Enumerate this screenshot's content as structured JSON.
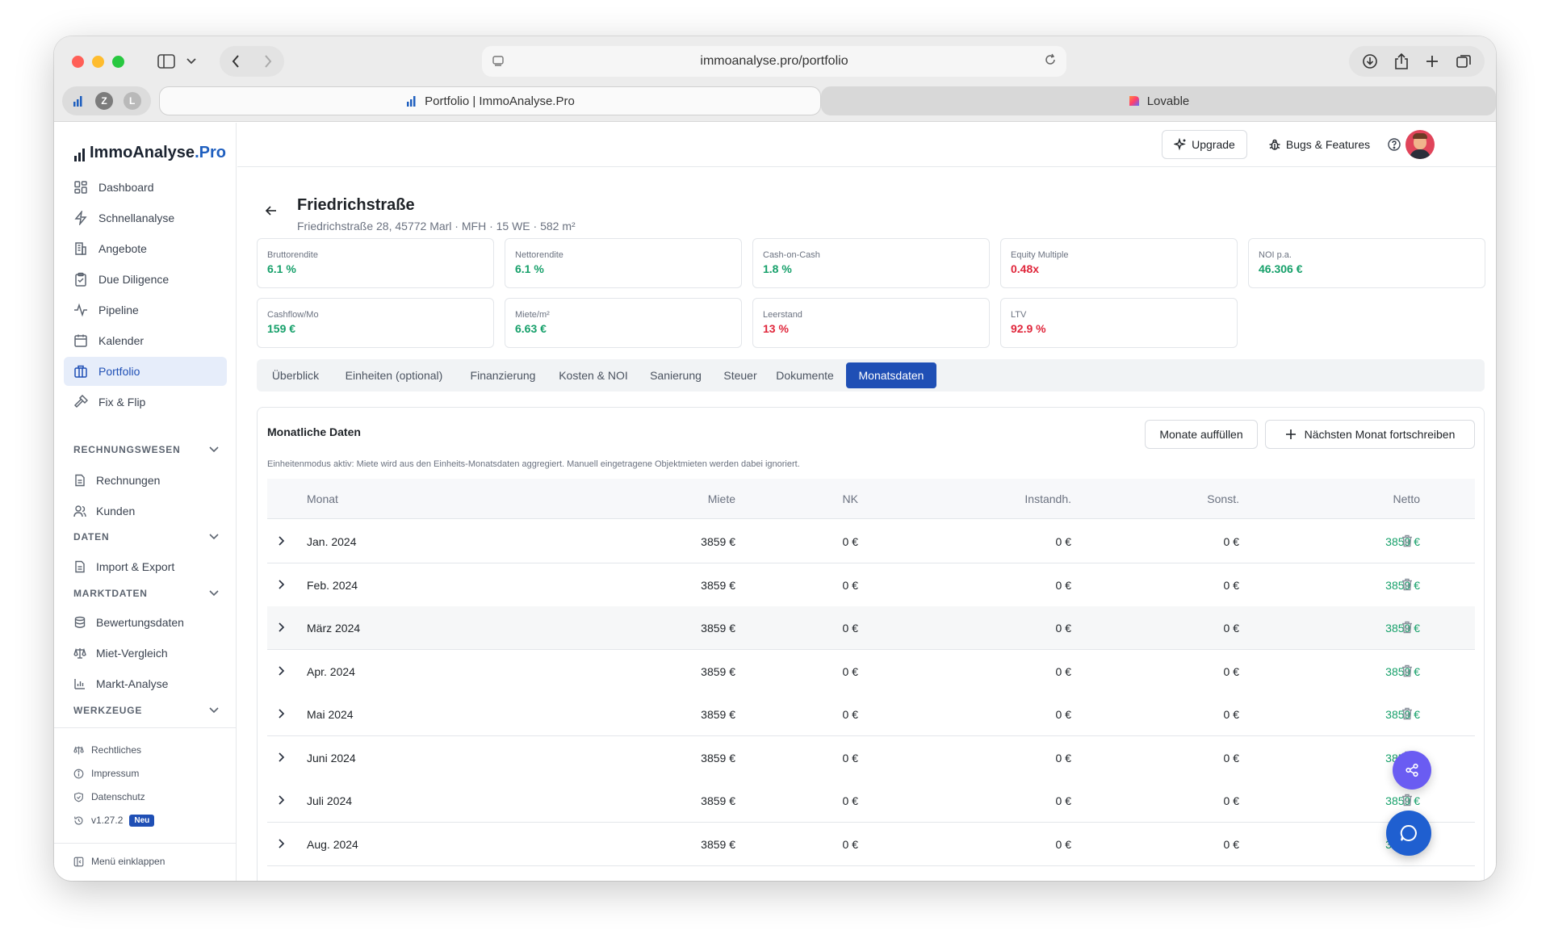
{
  "browser": {
    "url": "immoanalyse.pro/portfolio",
    "tabs": [
      {
        "label": "Portfolio | ImmoAnalyse.Pro",
        "active": true
      },
      {
        "label": "Lovable",
        "active": false
      }
    ],
    "favorites": [
      "Z",
      "L"
    ]
  },
  "logo": {
    "main": "ImmoAnalyse",
    "suffix": ".Pro"
  },
  "sidebar": {
    "items": [
      {
        "label": "Dashboard",
        "icon": "grid-icon"
      },
      {
        "label": "Schnellanalyse",
        "icon": "bolt-icon"
      },
      {
        "label": "Angebote",
        "icon": "building-icon"
      },
      {
        "label": "Due Diligence",
        "icon": "clipboard-check-icon"
      },
      {
        "label": "Pipeline",
        "icon": "activity-icon"
      },
      {
        "label": "Kalender",
        "icon": "calendar-icon"
      },
      {
        "label": "Portfolio",
        "icon": "briefcase-icon"
      },
      {
        "label": "Fix & Flip",
        "icon": "hammer-icon"
      }
    ],
    "sections": [
      {
        "title": "RECHNUNGSWESEN",
        "items": [
          "Rechnungen",
          "Kunden"
        ]
      },
      {
        "title": "DATEN",
        "items": [
          "Import & Export"
        ]
      },
      {
        "title": "MARKTDATEN",
        "items": [
          "Bewertungsdaten",
          "Miet-Vergleich",
          "Markt-Analyse"
        ]
      },
      {
        "title": "WERKZEUGE",
        "items": []
      }
    ],
    "footer": [
      "Rechtliches",
      "Impressum",
      "Datenschutz",
      "v1.27.2"
    ],
    "new_badge": "Neu",
    "collapse": "Menü einklappen"
  },
  "header": {
    "upgrade": "Upgrade",
    "bugs": "Bugs & Features"
  },
  "property": {
    "title": "Friedrichstraße",
    "subtitle": "Friedrichstraße 28, 45772 Marl · MFH · 15 WE · 582 m²"
  },
  "kpis": [
    {
      "label": "Bruttorendite",
      "value": "6.1 %",
      "color": "#16a06a"
    },
    {
      "label": "Nettorendite",
      "value": "6.1 %",
      "color": "#16a06a"
    },
    {
      "label": "Cash-on-Cash",
      "value": "1.8 %",
      "color": "#16a06a"
    },
    {
      "label": "Equity Multiple",
      "value": "0.48x",
      "color": "#e0263b"
    },
    {
      "label": "NOI p.a.",
      "value": "46.306 €",
      "color": "#16a06a"
    },
    {
      "label": "Cashflow/Mo",
      "value": "159 €",
      "color": "#16a06a"
    },
    {
      "label": "Miete/m²",
      "value": "6.63 €",
      "color": "#16a06a"
    },
    {
      "label": "Leerstand",
      "value": "13 %",
      "color": "#e0263b"
    },
    {
      "label": "LTV",
      "value": "92.9 %",
      "color": "#e0263b"
    }
  ],
  "tabs": [
    "Überblick",
    "Einheiten (optional)",
    "Finanzierung",
    "Kosten & NOI",
    "Sanierung",
    "Steuer",
    "Dokumente",
    "Monatsdaten"
  ],
  "active_tab": "Monatsdaten",
  "monthly": {
    "title": "Monatliche Daten",
    "fill_button": "Monate auffüllen",
    "next_button": "Nächsten Monat fortschreiben",
    "info": "Einheitenmodus aktiv: Miete wird aus den Einheits-Monatsdaten aggregiert. Manuell eingetragene Objektmieten werden dabei ignoriert.",
    "columns": [
      "Monat",
      "Miete",
      "NK",
      "Instandh.",
      "Sonst.",
      "Netto"
    ],
    "rows": [
      {
        "month": "Jan. 2024",
        "miete": "3859 €",
        "nk": "0 €",
        "instandh": "0 €",
        "sonst": "0 €",
        "netto": "3859 €"
      },
      {
        "month": "Feb. 2024",
        "miete": "3859 €",
        "nk": "0 €",
        "instandh": "0 €",
        "sonst": "0 €",
        "netto": "3859 €"
      },
      {
        "month": "März 2024",
        "miete": "3859 €",
        "nk": "0 €",
        "instandh": "0 €",
        "sonst": "0 €",
        "netto": "3859 €"
      },
      {
        "month": "Apr. 2024",
        "miete": "3859 €",
        "nk": "0 €",
        "instandh": "0 €",
        "sonst": "0 €",
        "netto": "3859 €"
      },
      {
        "month": "Mai 2024",
        "miete": "3859 €",
        "nk": "0 €",
        "instandh": "0 €",
        "sonst": "0 €",
        "netto": "3859 €"
      },
      {
        "month": "Juni 2024",
        "miete": "3859 €",
        "nk": "0 €",
        "instandh": "0 €",
        "sonst": "0 €",
        "netto": "3859 €"
      },
      {
        "month": "Juli 2024",
        "miete": "3859 €",
        "nk": "0 €",
        "instandh": "0 €",
        "sonst": "0 €",
        "netto": "3859 €"
      },
      {
        "month": "Aug. 2024",
        "miete": "3859 €",
        "nk": "0 €",
        "instandh": "0 €",
        "sonst": "0 €",
        "netto": "3859 €"
      }
    ]
  }
}
